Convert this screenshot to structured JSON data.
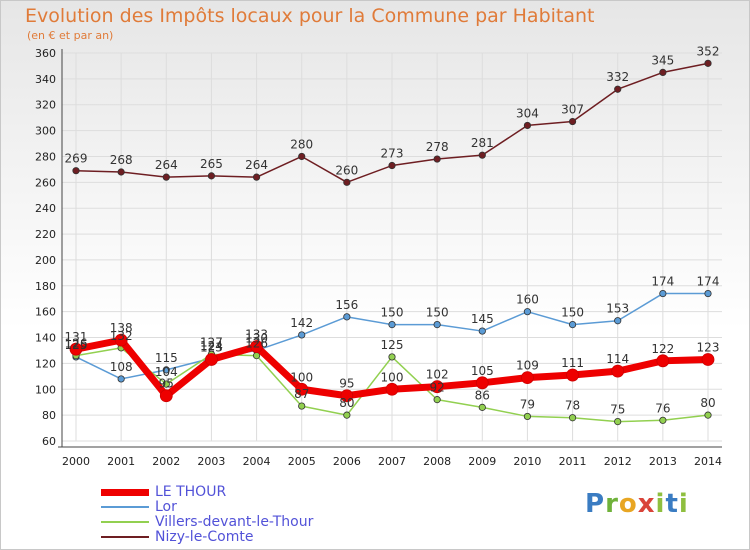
{
  "header": {
    "title": "Evolution des Impôts locaux pour la Commune par Habitant",
    "subtitle": "(en € et par an)"
  },
  "brand": {
    "text": "Proxiti",
    "colors": [
      "#3a7cc2",
      "#6fb23a",
      "#e8a623",
      "#d9443a",
      "#8fbf3f",
      "#3a7cc2",
      "#8fbf3f"
    ]
  },
  "chart_data": {
    "type": "line",
    "title": "Evolution des Impôts locaux pour la Commune par Habitant",
    "subtitle": "(en € et par an)",
    "x": [
      "2000",
      "2001",
      "2002",
      "2003",
      "2004",
      "2005",
      "2006",
      "2007",
      "2008",
      "2009",
      "2010",
      "2011",
      "2012",
      "2013",
      "2014"
    ],
    "ylim": [
      60,
      360
    ],
    "yticks": [
      60,
      80,
      100,
      120,
      140,
      160,
      180,
      200,
      220,
      240,
      260,
      280,
      300,
      320,
      340,
      360
    ],
    "grid": true,
    "legend_position": "bottom-left",
    "series": [
      {
        "name": "LE THOUR",
        "color": "#ee0000",
        "width": 7,
        "values": [
          131,
          138,
          95,
          123,
          133,
          100,
          95,
          100,
          102,
          105,
          109,
          111,
          114,
          122,
          123
        ],
        "labels": [
          131,
          138,
          95,
          123,
          133,
          100,
          95,
          100,
          102,
          105,
          109,
          111,
          114,
          122,
          123
        ]
      },
      {
        "name": "Lor",
        "color": "#5b9bd5",
        "width": 1.5,
        "values": [
          125,
          108,
          115,
          124,
          130,
          142,
          156,
          150,
          150,
          145,
          160,
          150,
          153,
          174,
          174
        ],
        "labels": [
          125,
          108,
          115,
          124,
          130,
          142,
          156,
          150,
          150,
          145,
          160,
          150,
          153,
          174,
          174
        ]
      },
      {
        "name": "Villers-devant-le-Thour",
        "color": "#92d050",
        "width": 1.5,
        "values": [
          126,
          132,
          104,
          127,
          126,
          87,
          80,
          125,
          92,
          86,
          79,
          78,
          75,
          76,
          80
        ],
        "labels": [
          126,
          132,
          104,
          127,
          126,
          87,
          80,
          125,
          92,
          86,
          79,
          78,
          75,
          76,
          80
        ]
      },
      {
        "name": "Nizy-le-Comte",
        "color": "#6e1e22",
        "width": 1.5,
        "values": [
          269,
          268,
          264,
          265,
          264,
          280,
          260,
          273,
          278,
          281,
          304,
          307,
          332,
          345,
          352
        ],
        "labels": [
          269,
          268,
          264,
          265,
          264,
          280,
          260,
          273,
          278,
          281,
          304,
          307,
          332,
          345,
          352
        ]
      }
    ]
  }
}
